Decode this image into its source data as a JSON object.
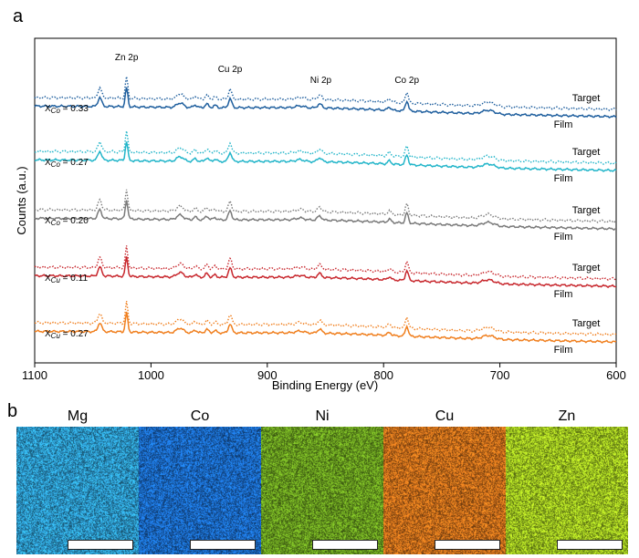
{
  "panel_a_letter": "a",
  "panel_b_letter": "b",
  "chart_data": {
    "type": "line",
    "title": "",
    "xlabel": "Binding Energy (eV)",
    "ylabel": "Counts (a.u.)",
    "xlim": [
      1100,
      600
    ],
    "x_reversed": true,
    "xticks": [
      "1100",
      "1000",
      "900",
      "800",
      "700",
      "600"
    ],
    "peak_labels": [
      {
        "text": "Zn 2p",
        "x": 1021
      },
      {
        "text": "Cu 2p",
        "x": 932
      },
      {
        "text": "Ni 2p",
        "x": 854
      },
      {
        "text": "Co 2p",
        "x": 780
      }
    ],
    "peaks": [
      1044,
      1021,
      975,
      962,
      952,
      945,
      932,
      872,
      855,
      795,
      780,
      710
    ],
    "series": [
      {
        "name": "XCo = 0.33",
        "label_main": "X",
        "label_sub": "Co",
        "label_rest": " = 0.33",
        "color": "#1f5f9e",
        "film_label": "Film",
        "target_label": "Target"
      },
      {
        "name": "XCo = 0.27",
        "label_main": "X",
        "label_sub": "Co",
        "label_rest": " = 0.27",
        "color": "#22b5c9",
        "film_label": "Film",
        "target_label": "Target"
      },
      {
        "name": "XCo = 0.20",
        "label_main": "X",
        "label_sub": "Co",
        "label_rest": " = 0.20",
        "color": "#7a7a7a",
        "film_label": "Film",
        "target_label": "Target"
      },
      {
        "name": "XCu = 0.11",
        "label_main": "X",
        "label_sub": "Cu",
        "label_rest": " = 0.11",
        "color": "#c8282e",
        "film_label": "Film",
        "target_label": "Target"
      },
      {
        "name": "XCu = 0.27",
        "label_main": "X",
        "label_sub": "Cu",
        "label_rest": " = 0.27",
        "color": "#f07f1e",
        "film_label": "Film",
        "target_label": "Target"
      }
    ],
    "line_styles": {
      "film": "solid",
      "target": "dotted"
    }
  },
  "eds_maps": [
    {
      "element": "Mg",
      "color": "#2fa0d6"
    },
    {
      "element": "Co",
      "color": "#1c6fd0"
    },
    {
      "element": "Ni",
      "color": "#6ea521"
    },
    {
      "element": "Cu",
      "color": "#d6741c"
    },
    {
      "element": "Zn",
      "color": "#a6cf22"
    }
  ]
}
